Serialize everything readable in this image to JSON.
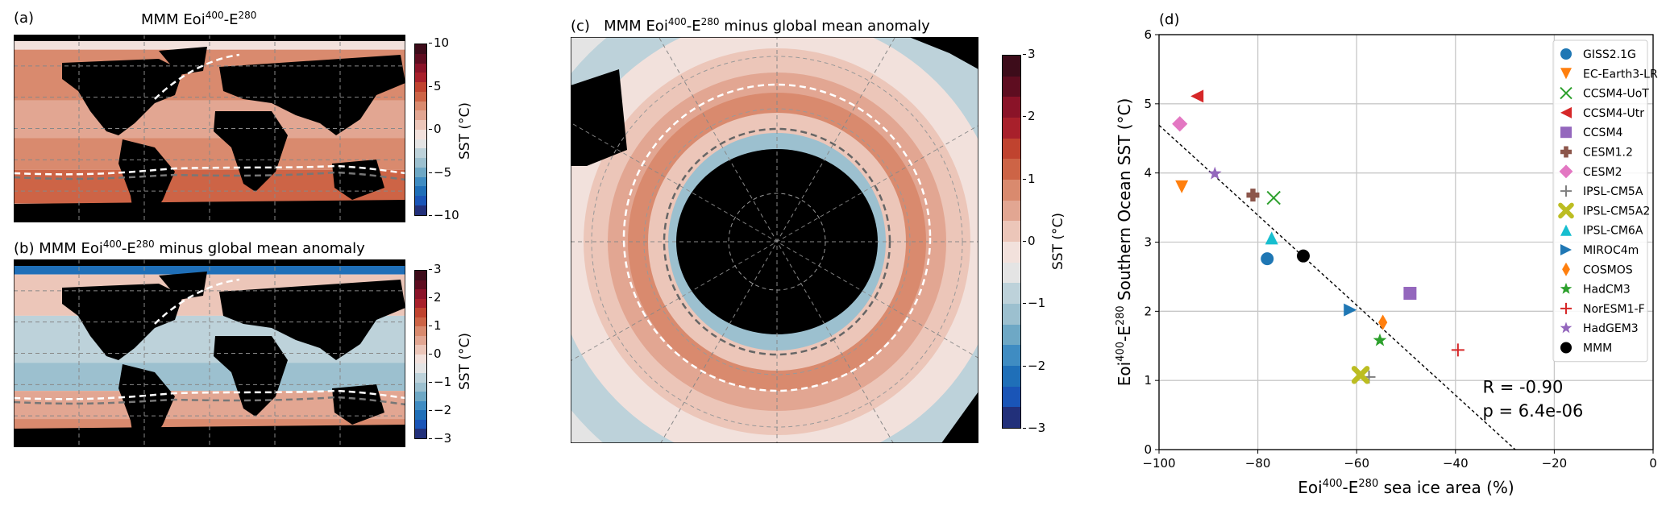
{
  "panels": {
    "a": {
      "label": "(a)",
      "title_main": "MMM Eoi",
      "title_sup1": "400",
      "title_mid": "-E",
      "title_sup2": "280",
      "title_tail": "",
      "colorbar": {
        "label": "SST (°C)",
        "ticks": [
          "10",
          "5",
          "0",
          "−5",
          "−10"
        ],
        "range": [
          -10,
          10
        ]
      }
    },
    "b": {
      "label": "(b)",
      "title_main": "MMM Eoi",
      "title_sup1": "400",
      "title_mid": "-E",
      "title_sup2": "280",
      "title_tail": " minus global mean anomaly",
      "colorbar": {
        "label": "SST (°C)",
        "ticks": [
          "3",
          "2",
          "1",
          "0",
          "−1",
          "−2",
          "−3"
        ],
        "range": [
          -3,
          3
        ]
      }
    },
    "c": {
      "label": "(c)",
      "title_main": "MMM Eoi",
      "title_sup1": "400",
      "title_mid": "-E",
      "title_sup2": "280",
      "title_tail": " minus global mean anomaly",
      "colorbar": {
        "label": "SST (°C)",
        "ticks": [
          "3",
          "2",
          "1",
          "0",
          "−1",
          "−2",
          "−3"
        ],
        "range": [
          -3,
          3
        ]
      }
    }
  },
  "colormap": [
    "#3d0c1a",
    "#5e0d20",
    "#8a1328",
    "#a8202b",
    "#c0432f",
    "#cd6446",
    "#d98a6e",
    "#e2a692",
    "#ecc6b9",
    "#f2e1dc",
    "#e4e4e4",
    "#bdd2da",
    "#9cc0cf",
    "#6ea8c5",
    "#3f8cc2",
    "#1f6fb8",
    "#1a55b7",
    "#22307a"
  ],
  "chart_data": {
    "type": "scatter",
    "panel_label": "(d)",
    "xlabel_main": "Eoi",
    "xlabel_sup1": "400",
    "xlabel_mid": "-E",
    "xlabel_sup2": "280",
    "xlabel_tail": " sea ice area (%)",
    "ylabel": "Eoi400-E280 Southern Ocean SST (°C)",
    "ylabel_main": "Eoi",
    "ylabel_sup1": "400",
    "ylabel_mid": "-E",
    "ylabel_sup2": "280",
    "ylabel_tail": " Southern Ocean SST (°C)",
    "xlim": [
      -100,
      0
    ],
    "ylim": [
      0,
      6
    ],
    "xticks": [
      -100,
      -80,
      -60,
      -40,
      -20,
      0
    ],
    "xtick_labels": [
      "−100",
      "−80",
      "−60",
      "−40",
      "−20",
      "0"
    ],
    "yticks": [
      0,
      1,
      2,
      3,
      4,
      5,
      6
    ],
    "ytick_labels": [
      "0",
      "1",
      "2",
      "3",
      "4",
      "5",
      "6"
    ],
    "grid": true,
    "legend_position": "top-right",
    "series": [
      {
        "name": "GISS2.1G",
        "marker": "circle",
        "color": "#1f77b4",
        "x": -78.1,
        "y": 2.76
      },
      {
        "name": "EC-Earth3-LR",
        "marker": "triangle-down",
        "color": "#ff7f0e",
        "x": -95.4,
        "y": 3.8
      },
      {
        "name": "CCSM4-UoT",
        "marker": "x",
        "color": "#2ca02c",
        "x": -76.8,
        "y": 3.64
      },
      {
        "name": "CCSM4-Utr",
        "marker": "triangle-left",
        "color": "#d62728",
        "x": -92.3,
        "y": 5.11
      },
      {
        "name": "CCSM4",
        "marker": "square",
        "color": "#9467bd",
        "x": -49.2,
        "y": 2.26
      },
      {
        "name": "CESM1.2",
        "marker": "plus-filled",
        "color": "#8c564b",
        "x": -81.0,
        "y": 3.68
      },
      {
        "name": "CESM2",
        "marker": "diamond",
        "color": "#e377c2",
        "x": -95.8,
        "y": 4.71
      },
      {
        "name": "IPSL-CM5A",
        "marker": "plus",
        "color": "#7f7f7f",
        "x": -57.5,
        "y": 1.05
      },
      {
        "name": "IPSL-CM5A2",
        "marker": "x-filled",
        "color": "#bcbd22",
        "x": -59.2,
        "y": 1.08
      },
      {
        "name": "IPSL-CM6A",
        "marker": "triangle-up",
        "color": "#17becf",
        "x": -77.2,
        "y": 3.06
      },
      {
        "name": "MIROC4m",
        "marker": "triangle-right",
        "color": "#1f77b4",
        "x": -61.3,
        "y": 2.02
      },
      {
        "name": "COSMOS",
        "marker": "thin-diamond",
        "color": "#ff7f0e",
        "x": -54.7,
        "y": 1.84
      },
      {
        "name": "HadCM3",
        "marker": "star",
        "color": "#2ca02c",
        "x": -55.3,
        "y": 1.58
      },
      {
        "name": "NorESM1-F",
        "marker": "plus",
        "color": "#d62728",
        "x": -39.5,
        "y": 1.44
      },
      {
        "name": "HadGEM3",
        "marker": "star",
        "color": "#9467bd",
        "x": -88.7,
        "y": 3.99
      },
      {
        "name": "MMM",
        "marker": "circle",
        "color": "#000000",
        "x": -70.8,
        "y": 2.8
      }
    ],
    "regression": {
      "x": [
        -100,
        -27.9
      ],
      "y": [
        4.69,
        0.0
      ],
      "style": "dashed",
      "color": "#000000"
    },
    "annotations": [
      "R = -0.90",
      "p = 6.4e-06"
    ]
  }
}
